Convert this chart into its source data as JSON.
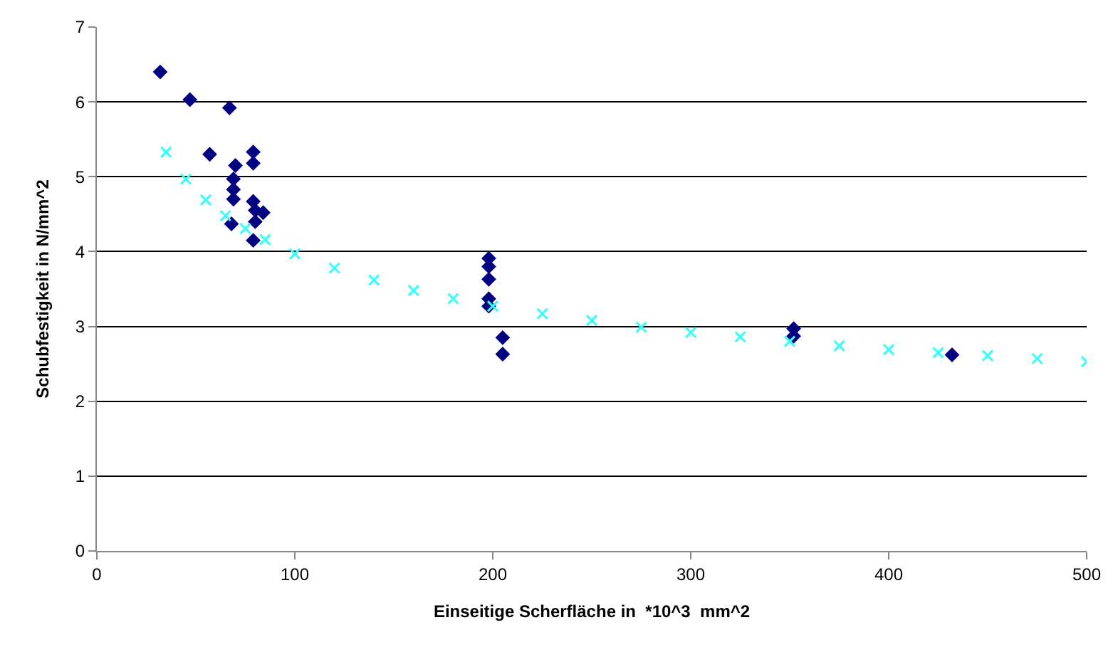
{
  "chart_data": {
    "type": "scatter",
    "xlabel": "Einseitige Scherfläche in  *10^3  mm^2",
    "ylabel": "Schubfestigkeit in N/mm^2",
    "xlim": [
      0,
      500
    ],
    "xticks": [
      0,
      100,
      200,
      300,
      400,
      500
    ],
    "ylim": [
      0,
      7
    ],
    "yticks": [
      0,
      1,
      2,
      3,
      4,
      5,
      6,
      7
    ],
    "grid": "y",
    "legend": false,
    "series": [
      {
        "color": "#000080",
        "marker": "diamond",
        "x": [
          32,
          47,
          67,
          57,
          70,
          69,
          69,
          69,
          68,
          79,
          79,
          79,
          80,
          82,
          84,
          80,
          79,
          198,
          198,
          198,
          198,
          198,
          205,
          205,
          352,
          352,
          432
        ],
        "values": [
          6.4,
          6.03,
          5.92,
          5.3,
          5.15,
          4.97,
          4.83,
          4.7,
          4.37,
          5.33,
          5.18,
          4.67,
          4.55,
          null,
          4.52,
          4.4,
          4.15,
          3.91,
          3.8,
          3.63,
          3.37,
          3.27,
          2.85,
          2.63,
          2.97,
          2.87,
          2.62
        ]
      },
      {
        "color": "#33ffff",
        "marker": "cross",
        "x": [
          35,
          45,
          55,
          65,
          75,
          85,
          100,
          120,
          140,
          160,
          180,
          200,
          225,
          250,
          275,
          300,
          325,
          350,
          375,
          400,
          425,
          450,
          475,
          500
        ],
        "values": [
          5.33,
          4.97,
          4.69,
          4.48,
          4.31,
          4.16,
          3.97,
          3.78,
          3.62,
          3.48,
          3.37,
          3.27,
          3.17,
          3.08,
          2.99,
          2.92,
          2.86,
          2.8,
          2.74,
          2.69,
          2.65,
          2.61,
          2.57,
          2.53
        ]
      }
    ]
  }
}
